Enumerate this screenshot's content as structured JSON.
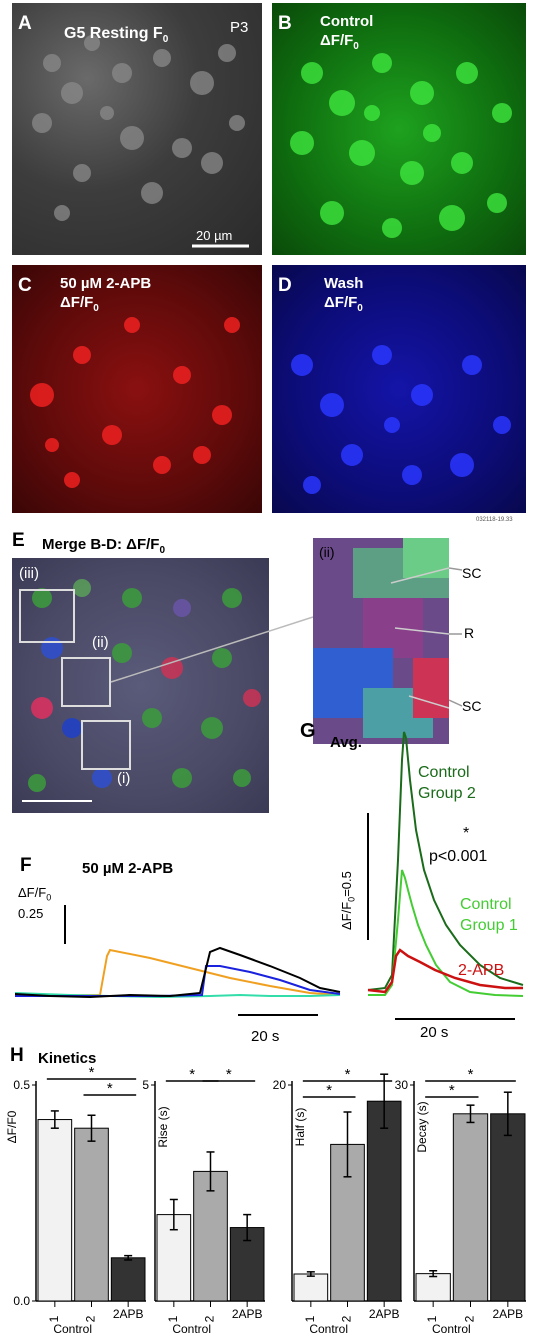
{
  "panels": {
    "A": {
      "letter": "A",
      "title": "G5 Resting F",
      "title_sub": "0",
      "age": "P3",
      "scale": "20 µm"
    },
    "B": {
      "letter": "B",
      "line1": "Control",
      "line2": "ΔF/F",
      "sub": "0"
    },
    "C": {
      "letter": "C",
      "line1": "50 µM 2-APB",
      "line2": "ΔF/F",
      "sub": "0"
    },
    "D": {
      "letter": "D",
      "line1": "Wash",
      "line2": "ΔF/F",
      "sub": "0"
    },
    "stamp": "032118-19.33",
    "E": {
      "letter": "E",
      "title": "Merge B-D:  ΔF/F",
      "sub": "0",
      "boxes": [
        "(iii)",
        "(ii)",
        "(i)"
      ]
    },
    "Eii": {
      "tag": "(ii)",
      "labels": [
        "SC",
        "R",
        "SC"
      ]
    },
    "F": {
      "letter": "F",
      "title": "50 µM 2-APB",
      "ylab1": "ΔF/F",
      "ylab_sub": "0",
      "ylab2": "0.25",
      "xscale": "20 s"
    },
    "G": {
      "letter": "G",
      "title": "Avg.",
      "ylab": "ΔF/F",
      "ylab_sub": "0",
      "ylab_end": "=0.5",
      "star": "*",
      "p": "p<0.001",
      "xscale": "20 s",
      "series": [
        "Control",
        "Group 2",
        "Control",
        "Group 1",
        "2-APB"
      ]
    },
    "H": {
      "letter": "H",
      "title": "Kinetics"
    }
  },
  "colors": {
    "control2": "#1a6b1a",
    "control1": "#44cc33",
    "apb": "#cc1111",
    "orange": "#f0a020",
    "blue": "#1a22dd",
    "cyan": "#33ddaa"
  },
  "chart_data": [
    {
      "type": "bar",
      "ylabel": "ΔF/F0",
      "ylim": [
        0,
        0.5
      ],
      "ticks": [
        "0.0",
        "0.5"
      ],
      "categories": [
        "1",
        "2",
        "2APB"
      ],
      "group_label": "Control",
      "values": [
        0.42,
        0.4,
        0.1
      ],
      "errors": [
        0.02,
        0.03,
        0.005
      ],
      "sig": [
        "*",
        "*"
      ]
    },
    {
      "type": "bar",
      "ylabel": "Rise (s)",
      "ylim": [
        0,
        5
      ],
      "ticks": [
        "5"
      ],
      "categories": [
        "1",
        "2",
        "2APB"
      ],
      "group_label": "Control",
      "values": [
        2.0,
        3.0,
        1.7
      ],
      "errors": [
        0.35,
        0.45,
        0.3
      ],
      "sig": [
        "*",
        "*"
      ]
    },
    {
      "type": "bar",
      "ylabel": "Half (s)",
      "ylim": [
        0,
        20
      ],
      "ticks": [
        "20"
      ],
      "categories": [
        "1",
        "2",
        "2APB"
      ],
      "group_label": "Control",
      "values": [
        2.5,
        14.5,
        18.5
      ],
      "errors": [
        0.2,
        3.0,
        2.5
      ],
      "sig": [
        "*",
        "*"
      ]
    },
    {
      "type": "bar",
      "ylabel": "Decay (s)",
      "ylim": [
        0,
        30
      ],
      "ticks": [
        "30"
      ],
      "categories": [
        "1",
        "2",
        "2APB"
      ],
      "group_label": "Control",
      "values": [
        3.8,
        26.0,
        26.0
      ],
      "errors": [
        0.4,
        1.2,
        3.0
      ],
      "sig": [
        "*",
        "*"
      ]
    }
  ]
}
